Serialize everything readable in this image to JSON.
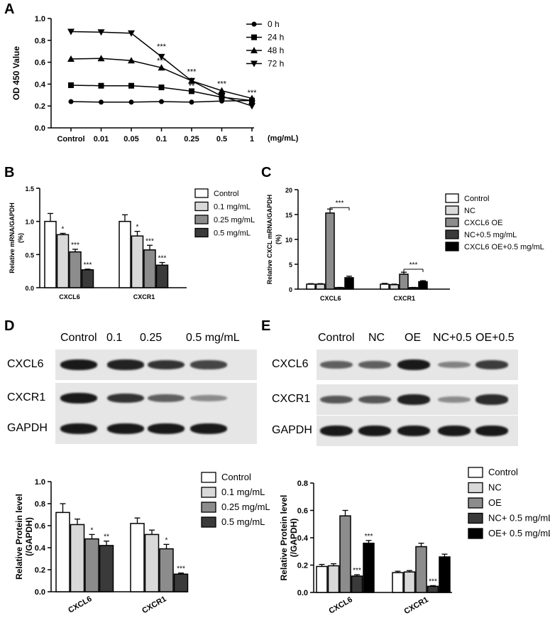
{
  "panels": {
    "a": "A",
    "b": "B",
    "c": "C",
    "d": "D",
    "e": "E"
  },
  "chart_data": [
    {
      "id": "A",
      "type": "line",
      "ylabel": "OD 450 Value",
      "xlabel": "",
      "x_unit": "(mg/mL)",
      "categories": [
        "Control",
        "0.01",
        "0.05",
        "0.1",
        "0.25",
        "0.5",
        "1"
      ],
      "ylim": [
        0.0,
        1.0
      ],
      "yticks": [
        "0.0",
        "0.2",
        "0.4",
        "0.6",
        "0.8",
        "1.0"
      ],
      "legend_position": "right",
      "series": [
        {
          "name": "0 h",
          "marker": "circle",
          "values": [
            0.24,
            0.235,
            0.235,
            0.24,
            0.235,
            0.245,
            0.25
          ]
        },
        {
          "name": "24 h",
          "marker": "square",
          "values": [
            0.39,
            0.385,
            0.385,
            0.37,
            0.335,
            0.28,
            0.25
          ]
        },
        {
          "name": "48 h",
          "marker": "triangle-up",
          "values": [
            0.63,
            0.635,
            0.615,
            0.55,
            0.43,
            0.34,
            0.27
          ]
        },
        {
          "name": "72 h",
          "marker": "triangle-down",
          "values": [
            0.88,
            0.875,
            0.865,
            0.65,
            0.43,
            0.29,
            0.2
          ]
        }
      ],
      "annotations": [
        {
          "text": "***",
          "x": "0.1",
          "y": 0.72
        },
        {
          "text": "***",
          "x": "0.1",
          "y": 0.59
        },
        {
          "text": "***",
          "x": "0.25",
          "y": 0.49
        },
        {
          "text": "**",
          "x": "0.25",
          "y": 0.36
        },
        {
          "text": "***",
          "x": "0.5",
          "y": 0.38
        },
        {
          "text": "***",
          "x": "1",
          "y": 0.3
        }
      ]
    },
    {
      "id": "B",
      "type": "bar",
      "ylabel": "Relative mRNA/GAPDH",
      "ylabel2": "(%)",
      "categories": [
        "CXCL6",
        "CXCR1"
      ],
      "ylim": [
        0.0,
        1.5
      ],
      "yticks": [
        "0.0",
        "0.5",
        "1.0",
        "1.5"
      ],
      "legend_position": "right",
      "series": [
        {
          "name": "Control",
          "color": "#ffffff",
          "values": [
            1.0,
            1.0
          ],
          "errors": [
            0.12,
            0.1
          ],
          "labels": [
            "",
            ""
          ]
        },
        {
          "name": "0.1 mg/mL",
          "color": "#d9d9d9",
          "values": [
            0.8,
            0.78
          ],
          "errors": [
            0.02,
            0.07
          ],
          "labels": [
            "*",
            "*"
          ]
        },
        {
          "name": "0.25 mg/mL",
          "color": "#8c8c8c",
          "values": [
            0.54,
            0.57
          ],
          "errors": [
            0.04,
            0.07
          ],
          "labels": [
            "***",
            "***"
          ]
        },
        {
          "name": "0.5 mg/mL",
          "color": "#3a3a3a",
          "values": [
            0.27,
            0.34
          ],
          "errors": [
            0.01,
            0.04
          ],
          "labels": [
            "***",
            "***"
          ]
        }
      ]
    },
    {
      "id": "C",
      "type": "bar",
      "ylabel": "Relative CXCL mRNA/GAPDH",
      "ylabel2": "(%)",
      "categories": [
        "CXCL6",
        "CXCR1"
      ],
      "ylim": [
        0,
        20
      ],
      "yticks": [
        "0",
        "5",
        "10",
        "15",
        "20"
      ],
      "legend_position": "right",
      "series": [
        {
          "name": "Control",
          "color": "#ffffff",
          "values": [
            1.0,
            1.0
          ],
          "errors": [
            0.1,
            0.15
          ],
          "labels": [
            "",
            ""
          ]
        },
        {
          "name": "NC",
          "color": "#d9d9d9",
          "values": [
            1.0,
            0.9
          ],
          "errors": [
            0.1,
            0.1
          ],
          "labels": [
            "",
            ""
          ]
        },
        {
          "name": "CXCL6 OE",
          "color": "#8c8c8c",
          "values": [
            15.3,
            3.0
          ],
          "errors": [
            0.8,
            0.4
          ],
          "labels": [
            "",
            ""
          ]
        },
        {
          "name": "NC+0.5 mg/mL",
          "color": "#3a3a3a",
          "values": [
            0.3,
            0.3
          ],
          "errors": [
            0.05,
            0.05
          ],
          "labels": [
            "",
            ""
          ]
        },
        {
          "name": "CXCL6 OE+0.5 mg/mL",
          "color": "#000000",
          "values": [
            2.3,
            1.5
          ],
          "errors": [
            0.3,
            0.2
          ],
          "labels": [
            "",
            ""
          ]
        }
      ],
      "brackets": [
        {
          "text": "***",
          "category": "CXCL6",
          "from": 2,
          "to": 4,
          "y": 16.4
        },
        {
          "text": "***",
          "category": "CXCR1",
          "from": 2,
          "to": 4,
          "y": 4.0
        }
      ]
    },
    {
      "id": "D",
      "type": "bar",
      "ylabel": "Relative Protein level",
      "ylabel2": "(/GAPDH)",
      "categories": [
        "CXCL6",
        "CXCR1"
      ],
      "ylim": [
        0.0,
        1.0
      ],
      "yticks": [
        "0.0",
        "0.2",
        "0.4",
        "0.6",
        "0.8",
        "1.0"
      ],
      "legend_position": "right",
      "series": [
        {
          "name": "Control",
          "color": "#ffffff",
          "values": [
            0.72,
            0.62
          ],
          "errors": [
            0.08,
            0.05
          ],
          "labels": [
            "",
            ""
          ]
        },
        {
          "name": "0.1 mg/mL",
          "color": "#d9d9d9",
          "values": [
            0.61,
            0.52
          ],
          "errors": [
            0.05,
            0.04
          ],
          "labels": [
            "",
            ""
          ]
        },
        {
          "name": "0.25 mg/mL",
          "color": "#8c8c8c",
          "values": [
            0.48,
            0.39
          ],
          "errors": [
            0.04,
            0.04
          ],
          "labels": [
            "*",
            "*"
          ]
        },
        {
          "name": "0.5 mg/mL",
          "color": "#3a3a3a",
          "values": [
            0.42,
            0.16
          ],
          "errors": [
            0.04,
            0.01
          ],
          "labels": [
            "**",
            "***"
          ]
        }
      ]
    },
    {
      "id": "E",
      "type": "bar",
      "ylabel": "Relative Protein level",
      "ylabel2": "(/GAPDH)",
      "categories": [
        "CXCL6",
        "CXCR1"
      ],
      "ylim": [
        0.0,
        0.8
      ],
      "yticks": [
        "0.0",
        "0.2",
        "0.4",
        "0.6",
        "0.8"
      ],
      "legend_position": "right",
      "series": [
        {
          "name": "Control",
          "color": "#ffffff",
          "values": [
            0.19,
            0.145
          ],
          "errors": [
            0.015,
            0.01
          ],
          "labels": [
            "",
            ""
          ]
        },
        {
          "name": "NC",
          "color": "#d9d9d9",
          "values": [
            0.195,
            0.15
          ],
          "errors": [
            0.015,
            0.01
          ],
          "labels": [
            "",
            ""
          ]
        },
        {
          "name": "OE",
          "color": "#8c8c8c",
          "values": [
            0.56,
            0.335
          ],
          "errors": [
            0.04,
            0.025
          ],
          "labels": [
            "",
            ""
          ]
        },
        {
          "name": "NC+ 0.5 mg/mL",
          "color": "#3a3a3a",
          "values": [
            0.12,
            0.045
          ],
          "errors": [
            0.01,
            0.005
          ],
          "labels": [
            "***",
            "***"
          ]
        },
        {
          "name": "OE+ 0.5 mg/mL",
          "color": "#000000",
          "values": [
            0.36,
            0.26
          ],
          "errors": [
            0.02,
            0.02
          ],
          "labels": [
            "***",
            ""
          ]
        }
      ]
    }
  ],
  "blots": {
    "d": {
      "columns": [
        "Control",
        "0.1",
        "0.25",
        "0.5 mg/mL"
      ],
      "rows": [
        {
          "label": "CXCL6",
          "intensity": [
            1.0,
            0.95,
            0.85,
            0.75
          ]
        },
        {
          "label": "CXCR1",
          "intensity": [
            1.0,
            0.85,
            0.6,
            0.35
          ]
        },
        {
          "label": "GAPDH",
          "intensity": [
            1.0,
            1.0,
            1.0,
            1.0
          ]
        }
      ]
    },
    "e": {
      "columns": [
        "Control",
        "NC",
        "OE",
        "NC+0.5",
        "OE+0.5"
      ],
      "rows": [
        {
          "label": "CXCL6",
          "intensity": [
            0.6,
            0.6,
            1.0,
            0.4,
            0.8
          ]
        },
        {
          "label": "CXCR1",
          "intensity": [
            0.65,
            0.65,
            0.95,
            0.35,
            0.9
          ]
        },
        {
          "label": "GAPDH",
          "intensity": [
            1.0,
            1.0,
            1.0,
            1.0,
            1.0
          ]
        }
      ]
    }
  }
}
